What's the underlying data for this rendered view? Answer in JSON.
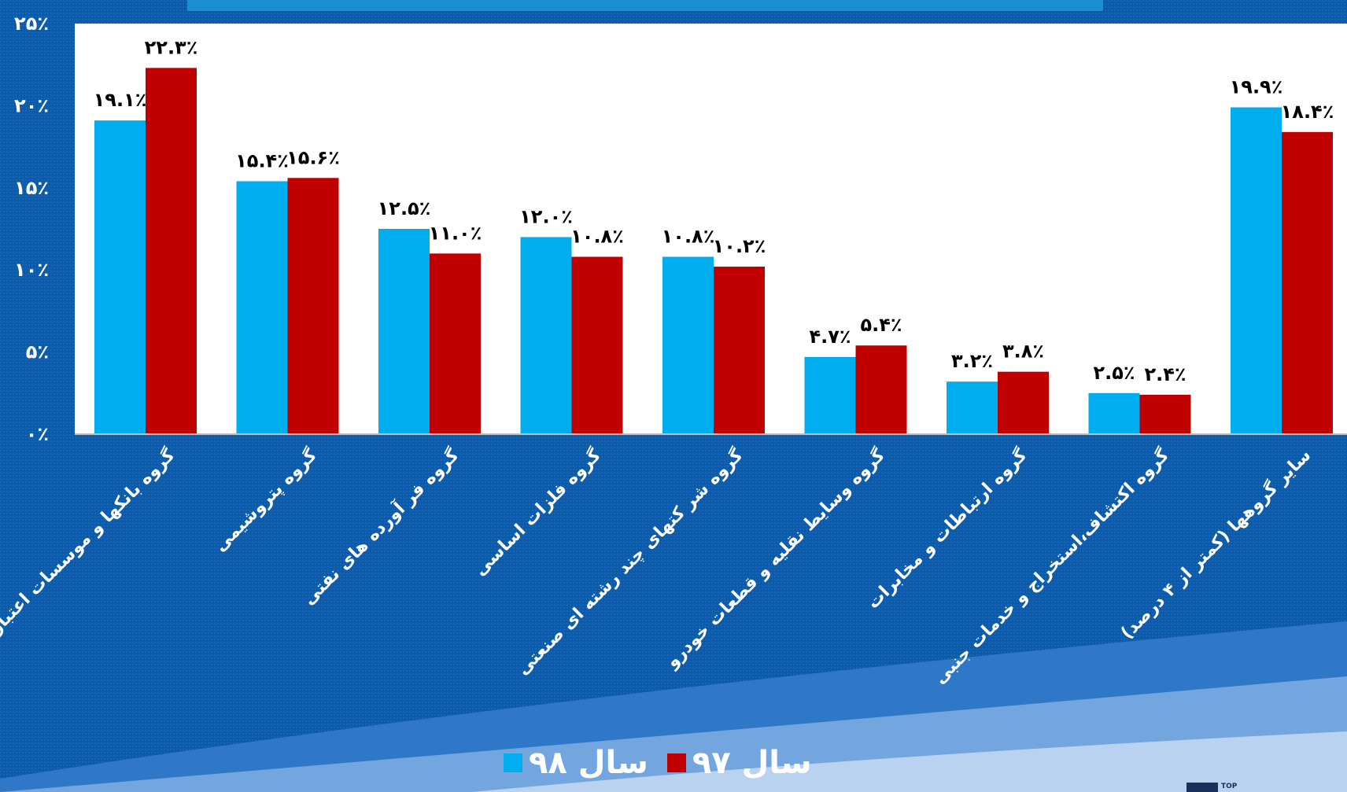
{
  "chart_data": {
    "type": "bar",
    "categories": [
      "گروه بانکها و موسسات اعتباری",
      "گروه پتروشیمی",
      "گروه فر آورده های نفتی",
      "گروه فلزات اساسی",
      "گروه شر کتهای چند رشته ای صنعتی",
      "گروه وسایط نقلیه و قطعات خودرو",
      "گروه ارتباطات و مخابرات",
      "گروه اکتشاف،استخراج و خدمات جنبی",
      "سایر گروهها (کمتر از ۴ درصد)"
    ],
    "series": [
      {
        "name": "سال ۹۸",
        "color": "#00adef",
        "values": [
          19.1,
          15.4,
          12.5,
          12.0,
          10.8,
          4.7,
          3.2,
          2.5,
          19.9
        ],
        "labels": [
          "۱۹.۱٪",
          "۱۵.۴٪",
          "۱۲.۵٪",
          "۱۲.۰٪",
          "۱۰.۸٪",
          "۴.۷٪",
          "۳.۲٪",
          "۲.۵٪",
          "۱۹.۹٪"
        ]
      },
      {
        "name": "سال ۹۷",
        "color": "#c00000",
        "values": [
          22.3,
          15.6,
          11.0,
          10.8,
          10.2,
          5.4,
          3.8,
          2.4,
          18.4
        ],
        "labels": [
          "۲۲.۳٪",
          "۱۵.۶٪",
          "۱۱.۰٪",
          "۱۰.۸٪",
          "۱۰.۲٪",
          "۵.۴٪",
          "۳.۸٪",
          "۲.۴٪",
          "۱۸.۴٪"
        ]
      }
    ],
    "ylim": [
      0,
      25
    ],
    "yticks": [
      0,
      5,
      10,
      15,
      20,
      25
    ],
    "ytick_labels": [
      "۰٪",
      "۵٪",
      "۱۰٪",
      "۱۵٪",
      "۲۰٪",
      "۲۵٪"
    ],
    "xlabel": "",
    "ylabel": "",
    "title": "",
    "grid": false,
    "legend_position": "bottom"
  },
  "legend": {
    "item_98": "سال ۹۸",
    "item_97": "سال ۹۷"
  },
  "colors": {
    "background": "#0d5aa8",
    "plot_area": "#ffffff",
    "series_98": "#00adef",
    "series_97": "#c00000",
    "text": "#ffffff"
  }
}
